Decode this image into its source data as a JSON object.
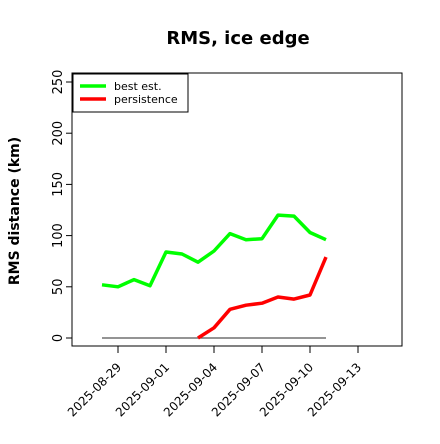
{
  "chart_data": {
    "type": "line",
    "title": "RMS, ice edge",
    "xlabel": "",
    "ylabel": "RMS distance (km)",
    "ylim": [
      0,
      250
    ],
    "yticks": [
      0,
      50,
      100,
      150,
      200,
      250
    ],
    "xlim": [
      "2025-08-27",
      "2025-09-15"
    ],
    "xticks": [
      "2025-08-29",
      "2025-09-01",
      "2025-09-04",
      "2025-09-07",
      "2025-09-10",
      "2025-09-13"
    ],
    "legend_position": "top-left",
    "grid": false,
    "series": [
      {
        "name": "best est.",
        "color": "#00ff00",
        "x": [
          "2025-08-28",
          "2025-08-29",
          "2025-08-30",
          "2025-08-31",
          "2025-09-01",
          "2025-09-02",
          "2025-09-03",
          "2025-09-04",
          "2025-09-05",
          "2025-09-06",
          "2025-09-07",
          "2025-09-08",
          "2025-09-09",
          "2025-09-10",
          "2025-09-11"
        ],
        "y": [
          52,
          50,
          57,
          51,
          84,
          82,
          74,
          85,
          102,
          96,
          97,
          120,
          119,
          103,
          96
        ]
      },
      {
        "name": "persistence",
        "color": "#ff0000",
        "x": [
          "2025-09-03",
          "2025-09-04",
          "2025-09-05",
          "2025-09-06",
          "2025-09-07",
          "2025-09-08",
          "2025-09-09",
          "2025-09-10",
          "2025-09-11"
        ],
        "y": [
          0,
          10,
          28,
          32,
          34,
          40,
          38,
          42,
          79
        ]
      }
    ],
    "reference_line": {
      "y": 0,
      "x_start": "2025-08-28",
      "x_end": "2025-09-11",
      "color": "#555555"
    }
  }
}
